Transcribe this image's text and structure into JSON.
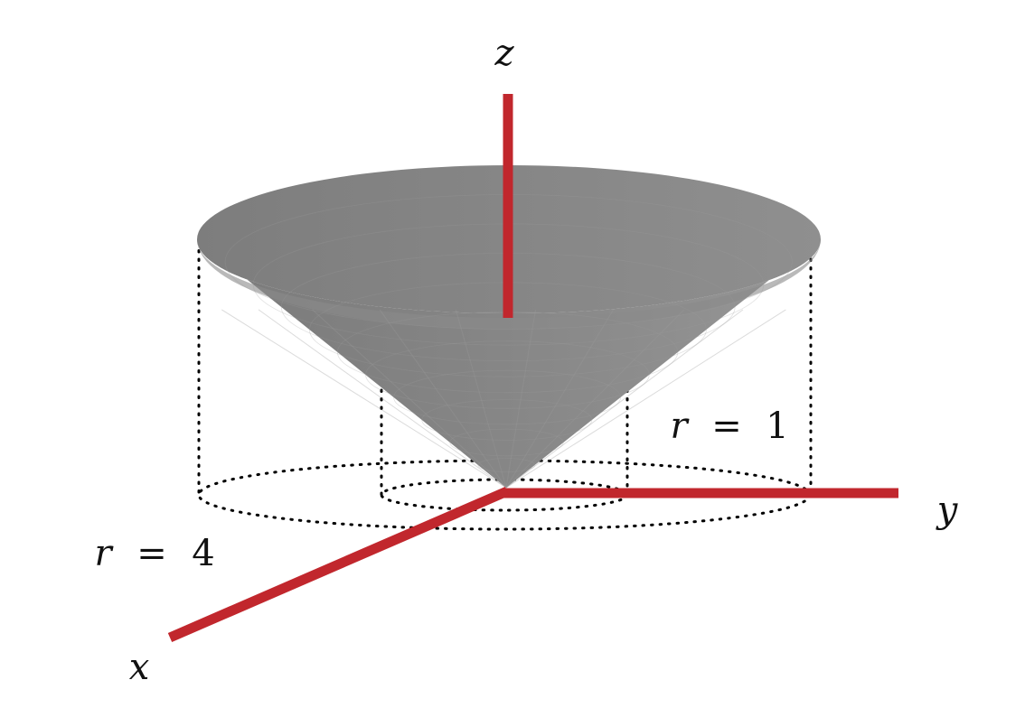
{
  "diagram": {
    "axes": {
      "x_label": "x",
      "y_label": "y",
      "z_label": "z"
    },
    "radius_labels": {
      "inner_var": "r",
      "inner_eq": "=",
      "inner_val": "1",
      "outer_var": "r",
      "outer_eq": "=",
      "outer_val": "4"
    },
    "colors": {
      "axis": "#c1272d",
      "cone_surface": "#808080",
      "cone_rim": "#8a8a8a",
      "guide_dots": "#000000"
    }
  }
}
